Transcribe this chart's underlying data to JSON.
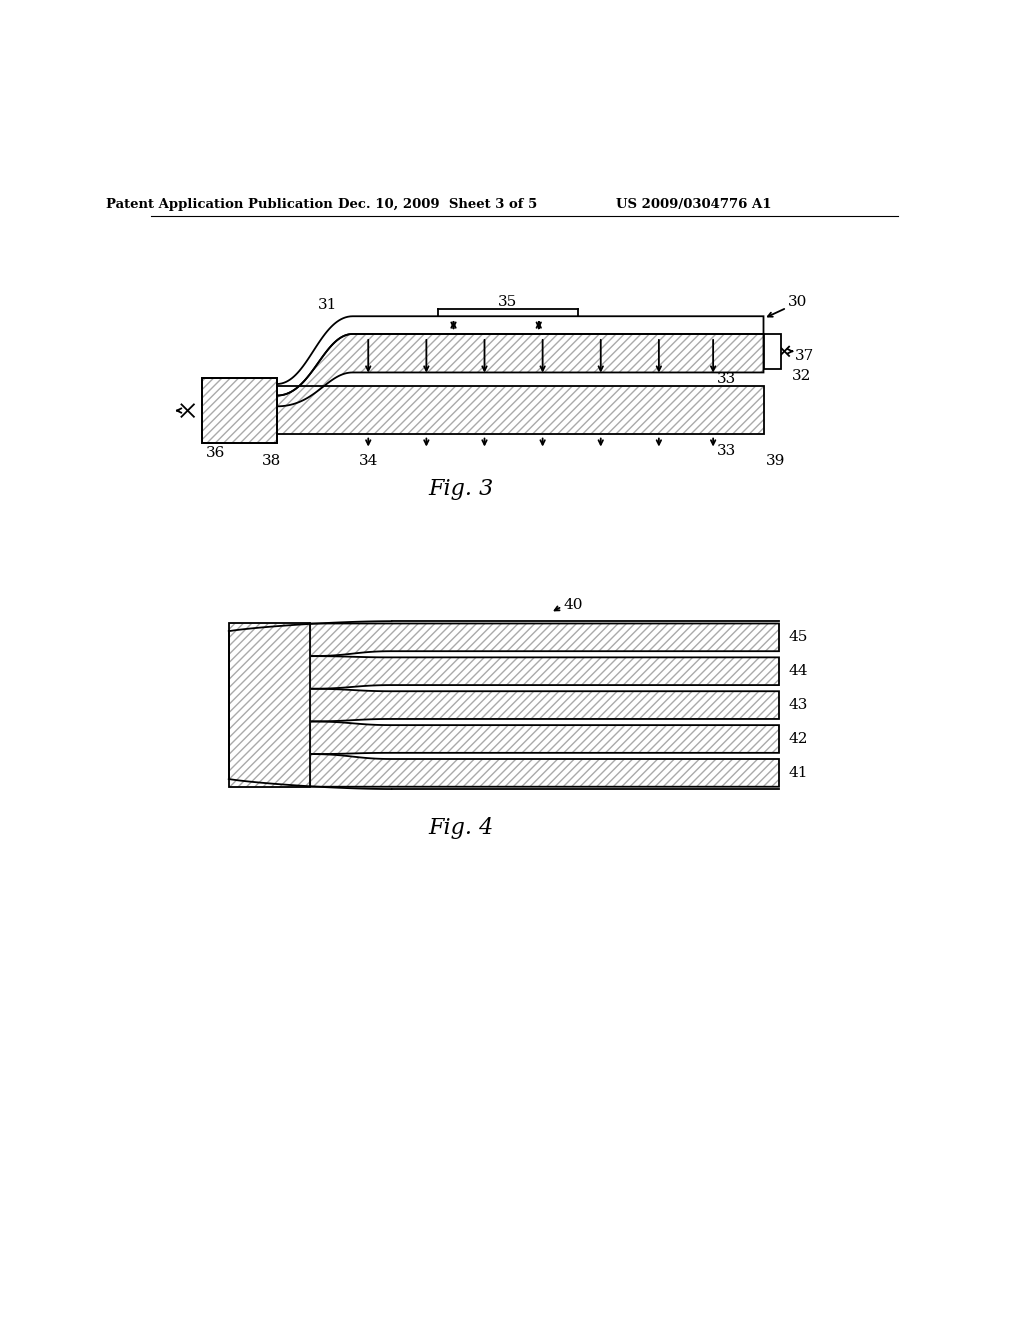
{
  "bg_color": "#ffffff",
  "header_left": "Patent Application Publication",
  "header_mid": "Dec. 10, 2009  Sheet 3 of 5",
  "header_right": "US 2009/0304776 A1",
  "fig3_label": "Fig. 3",
  "fig4_label": "Fig. 4",
  "hatch_pattern": "////",
  "line_color": "#000000",
  "hatch_color": "#aaaaaa",
  "fig3_labels": [
    "30",
    "31",
    "32",
    "33",
    "33",
    "34",
    "35",
    "36",
    "37",
    "38",
    "39"
  ],
  "fig4_labels": [
    "40",
    "41",
    "42",
    "43",
    "44",
    "45"
  ]
}
